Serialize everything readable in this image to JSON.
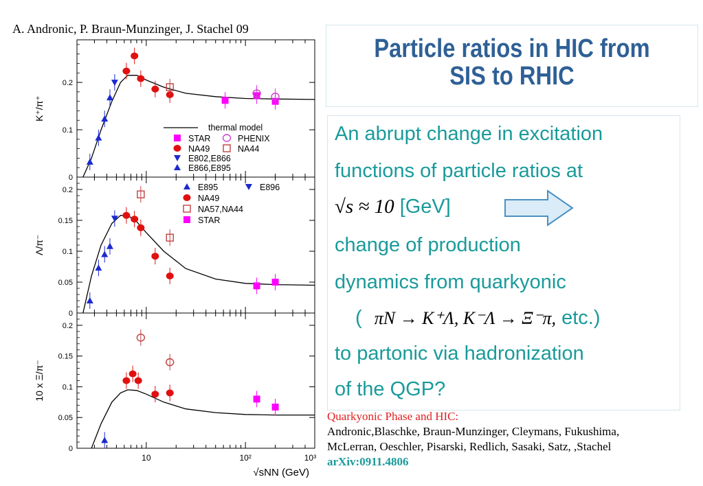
{
  "authors": "A. Andronic, P. Braun-Munzinger, J. Stachel 09",
  "title": {
    "line1": "Particle ratios in HIC from",
    "line2": "SIS to RHIC"
  },
  "body": {
    "l1": "An abrupt change in excitation",
    "l2": "functions of particle ratios at",
    "l3_math": "√s ≈ 10",
    "l3_text": "[GeV]",
    "l4": "change of production",
    "l5": "dynamics from quarkyonic",
    "l6_open": "(",
    "l6_math": "πN → K⁺Λ, K⁻Λ → Ξ⁻π,",
    "l6_text": "etc.)",
    "l7": "to partonic via hadronization",
    "l8": "of the QGP?"
  },
  "refs": {
    "heading": "Quarkyonic Phase and HIC:",
    "authors1": "Andronic,Blaschke, Braun-Munzinger, Cleymans, Fukushima,",
    "authors2": "McLerran, Oeschler, Pisarski, Redlich, Sasaki, Satz, ,Stachel",
    "arxiv": "arXiv:0911.4806"
  },
  "colors": {
    "title": "#2f6096",
    "body": "#1a9a9a",
    "ref_heading": "#e02020",
    "arrow_fill": "#d9ecf8",
    "arrow_stroke": "#4a8fc0",
    "star": "#ff00ff",
    "phenix": "#d040d0",
    "na49": "#e01010",
    "na44": "#c04040",
    "e802": "#1a2ad0",
    "e866": "#1a2ad0"
  },
  "chart_data": {
    "type": "scatter",
    "xlabel": "√sNN (GeV)",
    "xscale": "log",
    "xlim": [
      2,
      500
    ],
    "xticks": [
      "10",
      "10²",
      "10³"
    ],
    "panels": [
      {
        "ylabel": "K⁺/π⁺",
        "ylim": [
          0,
          0.29
        ],
        "yticks": [
          "0",
          "0.1",
          "0.2"
        ],
        "legend": [
          "thermal model",
          "STAR",
          "PHENIX",
          "NA49",
          "NA44",
          "E802,E866",
          "E866,E895"
        ],
        "series": [
          {
            "name": "E866,E895",
            "marker": "triangle-up",
            "color": "#1a2ad0",
            "x": [
              2.7,
              3.3,
              3.8,
              4.3
            ],
            "y": [
              0.032,
              0.083,
              0.123,
              0.168
            ]
          },
          {
            "name": "E802,E866",
            "marker": "triangle-down",
            "color": "#1a2ad0",
            "x": [
              4.8
            ],
            "y": [
              0.2
            ]
          },
          {
            "name": "NA49",
            "marker": "circle",
            "color": "#e01010",
            "x": [
              6.3,
              7.6,
              8.8,
              12.3,
              17.3
            ],
            "y": [
              0.224,
              0.256,
              0.208,
              0.186,
              0.174
            ]
          },
          {
            "name": "NA44",
            "marker": "open-square",
            "color": "#c04040",
            "x": [
              17.3
            ],
            "y": [
              0.19
            ]
          },
          {
            "name": "STAR",
            "marker": "square",
            "color": "#ff00ff",
            "x": [
              62.4,
              130,
              200
            ],
            "y": [
              0.162,
              0.172,
              0.16
            ]
          },
          {
            "name": "PHENIX",
            "marker": "open-circle",
            "color": "#d040d0",
            "x": [
              130,
              200
            ],
            "y": [
              0.177,
              0.17
            ]
          }
        ],
        "curve": {
          "name": "thermal model",
          "x": [
            2.3,
            2.8,
            3.5,
            4.5,
            5.5,
            6.5,
            8,
            10,
            15,
            25,
            50,
            100,
            200,
            500
          ],
          "y": [
            0.0,
            0.04,
            0.1,
            0.16,
            0.2,
            0.215,
            0.215,
            0.205,
            0.19,
            0.177,
            0.17,
            0.166,
            0.165,
            0.164
          ]
        }
      },
      {
        "ylabel": "Λ/π⁻",
        "ylim": [
          0,
          0.22
        ],
        "yticks": [
          "0",
          "0.05",
          "0.1",
          "0.15",
          "0.2"
        ],
        "legend": [
          "E895",
          "E896",
          "NA49",
          "NA57,NA44",
          "STAR"
        ],
        "series": [
          {
            "name": "E895",
            "marker": "triangle-up",
            "color": "#1a2ad0",
            "x": [
              2.7,
              3.3,
              3.8,
              4.3
            ],
            "y": [
              0.02,
              0.073,
              0.095,
              0.108
            ]
          },
          {
            "name": "E896",
            "marker": "triangle-down",
            "color": "#1a2ad0",
            "x": [
              4.8
            ],
            "y": [
              0.153
            ]
          },
          {
            "name": "NA49",
            "marker": "circle",
            "color": "#e01010",
            "x": [
              6.3,
              7.6,
              8.8,
              12.3,
              17.3
            ],
            "y": [
              0.158,
              0.152,
              0.138,
              0.092,
              0.06
            ]
          },
          {
            "name": "NA57,NA44",
            "marker": "open-square",
            "color": "#c04040",
            "x": [
              8.8,
              17.3
            ],
            "y": [
              0.192,
              0.122
            ]
          },
          {
            "name": "STAR",
            "marker": "square",
            "color": "#ff00ff",
            "x": [
              130,
              200
            ],
            "y": [
              0.044,
              0.05
            ]
          }
        ],
        "curve": {
          "name": "thermal model",
          "x": [
            2.3,
            2.8,
            3.5,
            4.5,
            5.5,
            6.5,
            8,
            10,
            15,
            25,
            50,
            100,
            200,
            500
          ],
          "y": [
            0.0,
            0.06,
            0.11,
            0.145,
            0.158,
            0.158,
            0.148,
            0.13,
            0.1,
            0.072,
            0.055,
            0.048,
            0.046,
            0.045
          ]
        }
      },
      {
        "ylabel": "10 x Ξ/π⁻",
        "ylim": [
          0,
          0.22
        ],
        "yticks": [
          "0",
          "0.05",
          "0.1",
          "0.15",
          "0.2"
        ],
        "series": [
          {
            "name": "E895",
            "marker": "triangle-up",
            "color": "#1a2ad0",
            "x": [
              3.8
            ],
            "y": [
              0.013
            ]
          },
          {
            "name": "NA49",
            "marker": "circle",
            "color": "#e01010",
            "x": [
              6.3,
              7.3,
              8.3,
              12.3,
              17.3
            ],
            "y": [
              0.11,
              0.121,
              0.11,
              0.088,
              0.09
            ]
          },
          {
            "name": "NA49 open",
            "marker": "open-circle",
            "color": "#c04040",
            "x": [
              8.8,
              17.3
            ],
            "y": [
              0.18,
              0.14
            ]
          },
          {
            "name": "STAR",
            "marker": "square",
            "color": "#ff00ff",
            "x": [
              130,
              200
            ],
            "y": [
              0.08,
              0.067
            ]
          }
        ],
        "curve": {
          "name": "thermal model",
          "x": [
            2.8,
            3.5,
            4.5,
            5.5,
            6.5,
            8,
            10,
            15,
            25,
            50,
            100,
            200,
            500
          ],
          "y": [
            0.0,
            0.04,
            0.075,
            0.09,
            0.095,
            0.094,
            0.088,
            0.075,
            0.064,
            0.058,
            0.055,
            0.054,
            0.054
          ]
        }
      }
    ]
  }
}
